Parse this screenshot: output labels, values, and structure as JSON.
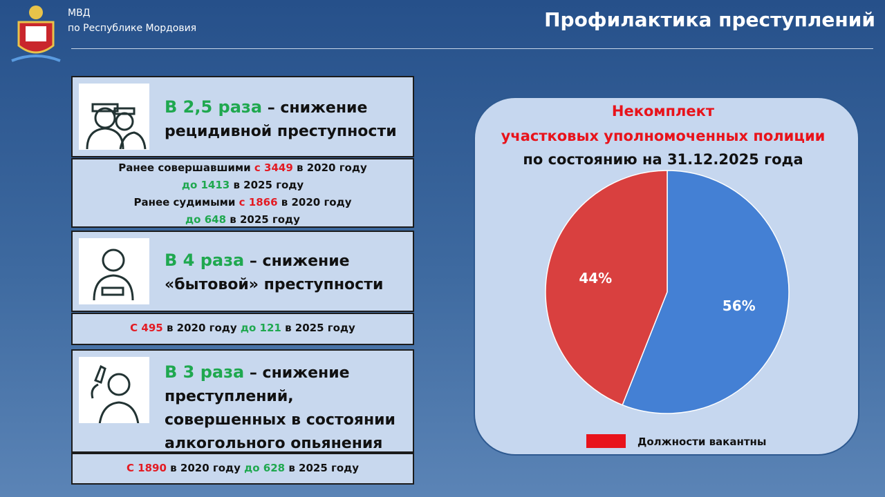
{
  "header": {
    "org": "МВД",
    "region": "по Республике Мордовия",
    "title": "Профилактика преступлений"
  },
  "panels": [
    {
      "accent": "В 2,5 раза",
      "headline": "– снижение рецидивной преступности",
      "details": [
        [
          {
            "text": "Ранее совершавшими"
          },
          {
            "text": "с 3449",
            "color": "#e31b23"
          },
          {
            "text": "в 2020 году"
          }
        ],
        [
          {
            "text": "до 1413",
            "color": "#1fa84f"
          },
          {
            "text": "в 2025 году"
          }
        ],
        [
          {
            "text": "Ранее судимыми"
          },
          {
            "text": "с 1866",
            "color": "#e31b23"
          },
          {
            "text": "в 2020 году"
          }
        ],
        [
          {
            "text": "до 648",
            "color": "#1fa84f"
          },
          {
            "text": "в 2025 году"
          }
        ]
      ]
    },
    {
      "accent": "В 4 раза",
      "headline": "– снижение «бытовой» преступности",
      "details": [
        [
          {
            "text": "С 495",
            "color": "#e31b23"
          },
          {
            "text": "в 2020 году"
          },
          {
            "text": "до 121",
            "color": "#1fa84f"
          },
          {
            "text": "в 2025 году"
          }
        ]
      ]
    },
    {
      "accent": "В 3 раза",
      "headline": "– снижение преступлений, совершенных в состоянии алкогольного опьянения",
      "details": [
        [
          {
            "text": "С 1890",
            "color": "#e31b23"
          },
          {
            "text": "в 2020 году"
          },
          {
            "text": "до 628",
            "color": "#1fa84f"
          },
          {
            "text": "в 2025 году"
          }
        ]
      ]
    }
  ],
  "chart_data": {
    "type": "pie",
    "title_lines": [
      "Некомплект",
      "участковых уполномоченных полиции"
    ],
    "subtitle": "по состоянию на 31.12.2025 года",
    "categories": [
      null,
      "Должности вакантны"
    ],
    "values": [
      56,
      44
    ],
    "value_labels": [
      "56%",
      "44%"
    ],
    "colors": [
      "#4480d4",
      "#d9403f"
    ],
    "legend_color": "#e8131b"
  }
}
